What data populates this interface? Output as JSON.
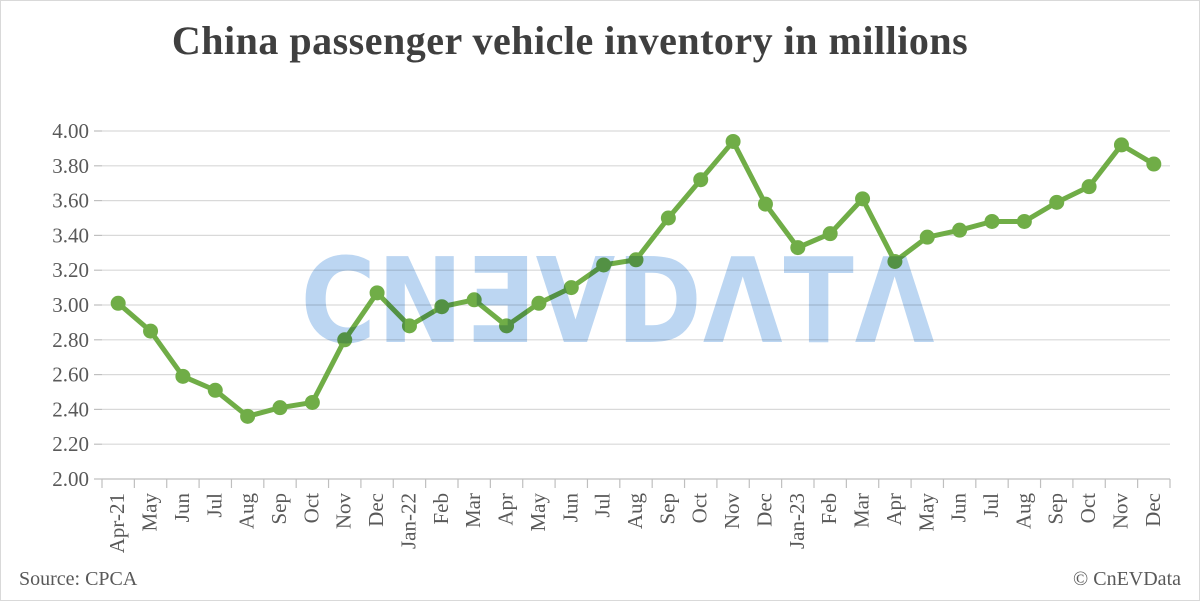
{
  "title": "China passenger vehicle inventory in millions",
  "watermark": {
    "brand": "CnEVData",
    "display_text": "CNƎVDΛTΛ",
    "color": "#a9cbee"
  },
  "footer": {
    "source": "Source: CPCA",
    "credit": "© CnEVData"
  },
  "colors": {
    "line": "#70ad47",
    "grid": "#d9d9d9",
    "axis": "#bfbfbf",
    "tick_label": "#595959",
    "title_text": "#3f3f3f"
  },
  "chart_data": {
    "type": "line",
    "title": "China passenger vehicle inventory in millions",
    "series_name": "Passenger vehicle inventory (millions)",
    "categories": [
      "Apr-21",
      "May",
      "Jun",
      "Jul",
      "Aug",
      "Sep",
      "Oct",
      "Nov",
      "Dec",
      "Jan-22",
      "Feb",
      "Mar",
      "Apr",
      "May",
      "Jun",
      "Jul",
      "Aug",
      "Sep",
      "Oct",
      "Nov",
      "Dec",
      "Jan-23",
      "Feb",
      "Mar",
      "Apr",
      "May",
      "Jun",
      "Jul",
      "Aug",
      "Sep",
      "Oct",
      "Nov",
      "Dec"
    ],
    "values": [
      3.01,
      2.85,
      2.59,
      2.51,
      2.36,
      2.41,
      2.44,
      2.8,
      3.07,
      2.88,
      2.99,
      3.03,
      2.88,
      3.01,
      3.1,
      3.23,
      3.26,
      3.5,
      3.72,
      3.94,
      3.58,
      3.33,
      3.41,
      3.61,
      3.25,
      3.39,
      3.43,
      3.48,
      3.48,
      3.59,
      3.68,
      3.92,
      3.81
    ],
    "xlabel": "",
    "ylabel": "",
    "ylim": [
      2.0,
      4.0
    ],
    "ytick_step": 0.2,
    "ytick_labels": [
      "2.00",
      "2.20",
      "2.40",
      "2.60",
      "2.80",
      "3.00",
      "3.20",
      "3.40",
      "3.60",
      "3.80",
      "4.00"
    ],
    "grid": true,
    "legend_position": "none",
    "marker": "circle",
    "source": "CPCA"
  }
}
